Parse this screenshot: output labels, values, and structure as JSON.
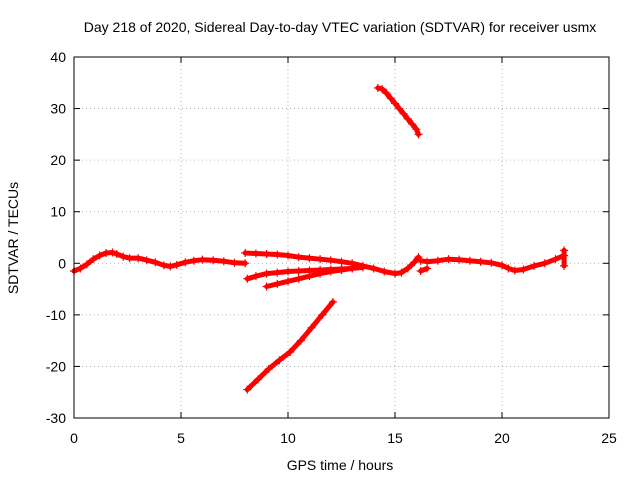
{
  "chart_data": {
    "type": "line",
    "title": "Day 218 of 2020, Sidereal Day-to-day VTEC variation (SDTVAR) for receiver usmx",
    "xlabel": "GPS time / hours",
    "ylabel": "SDTVAR / TECUs",
    "xlim": [
      0,
      25
    ],
    "ylim": [
      -30,
      40
    ],
    "xticks": [
      0,
      5,
      10,
      15,
      20,
      25
    ],
    "yticks": [
      -30,
      -20,
      -10,
      0,
      10,
      20,
      30,
      40
    ],
    "grid": true,
    "series_color": "#ff0000",
    "series": [
      {
        "name": "main-trace",
        "x": [
          0.0,
          0.3,
          0.6,
          0.9,
          1.2,
          1.5,
          1.8,
          2.0,
          2.3,
          2.6,
          3.0,
          3.4,
          3.8,
          4.2,
          4.5,
          4.8,
          5.2,
          5.6,
          6.0,
          6.5,
          7.0,
          7.5,
          8.0
        ],
        "y": [
          -1.5,
          -1.0,
          -0.2,
          0.8,
          1.5,
          2.0,
          2.1,
          1.8,
          1.3,
          1.0,
          1.0,
          0.6,
          0.2,
          -0.4,
          -0.6,
          -0.3,
          0.2,
          0.5,
          0.7,
          0.6,
          0.4,
          0.1,
          0.0
        ]
      },
      {
        "name": "arc-upper",
        "x": [
          8.0,
          8.5,
          9.0,
          9.5,
          10.0,
          10.5,
          11.0,
          11.5,
          12.0,
          12.5,
          13.0,
          13.5,
          14.0,
          14.5,
          15.0,
          15.3,
          15.6,
          15.9,
          16.1
        ],
        "y": [
          2.0,
          1.9,
          1.8,
          1.7,
          1.5,
          1.2,
          1.0,
          0.8,
          0.6,
          0.3,
          0.0,
          -0.5,
          -1.0,
          -1.6,
          -2.0,
          -1.8,
          -1.0,
          0.2,
          1.2
        ]
      },
      {
        "name": "arc-lower",
        "x": [
          8.1,
          8.5,
          9.0,
          9.5,
          10.0,
          10.5,
          11.0,
          11.5,
          12.0,
          12.5,
          13.0
        ],
        "y": [
          -3.0,
          -2.5,
          -2.0,
          -1.8,
          -1.6,
          -1.5,
          -1.4,
          -1.3,
          -1.2,
          -1.1,
          -1.0
        ]
      },
      {
        "name": "arc-lower-2",
        "x": [
          9.0,
          9.5,
          10.0,
          10.5,
          11.0,
          11.5,
          12.0,
          12.5,
          13.0,
          13.5
        ],
        "y": [
          -4.5,
          -4.0,
          -3.5,
          -3.0,
          -2.5,
          -2.0,
          -1.6,
          -1.3,
          -1.0,
          -0.8
        ]
      },
      {
        "name": "rising-segment",
        "x": [
          8.1,
          8.6,
          9.1,
          9.6,
          10.1,
          10.6,
          11.1,
          11.6,
          12.1
        ],
        "y": [
          -24.5,
          -22.5,
          -20.5,
          -18.8,
          -17.2,
          -15.0,
          -12.5,
          -10.0,
          -7.5
        ]
      },
      {
        "name": "falling-segment",
        "x": [
          14.2,
          14.4,
          14.6,
          14.8,
          15.0,
          15.2,
          15.4,
          15.6,
          15.8,
          16.0,
          16.1
        ],
        "y": [
          34.0,
          33.8,
          33.0,
          32.0,
          31.0,
          30.0,
          29.0,
          28.0,
          27.0,
          26.0,
          25.0
        ]
      },
      {
        "name": "tail-trace",
        "x": [
          16.2,
          16.5,
          17.0,
          17.5,
          18.0,
          18.5,
          19.0,
          19.5,
          20.0,
          20.3,
          20.6,
          21.0,
          21.5,
          22.0,
          22.5,
          22.9
        ],
        "y": [
          0.5,
          0.3,
          0.5,
          0.8,
          0.7,
          0.5,
          0.3,
          0.1,
          -0.4,
          -1.0,
          -1.4,
          -1.2,
          -0.5,
          0.0,
          0.8,
          1.5
        ]
      },
      {
        "name": "tail-trace-low",
        "x": [
          16.2,
          16.5
        ],
        "y": [
          -1.5,
          -1.0
        ]
      },
      {
        "name": "end-spike",
        "x": [
          22.9,
          22.9
        ],
        "y": [
          -0.5,
          2.5
        ]
      }
    ]
  }
}
